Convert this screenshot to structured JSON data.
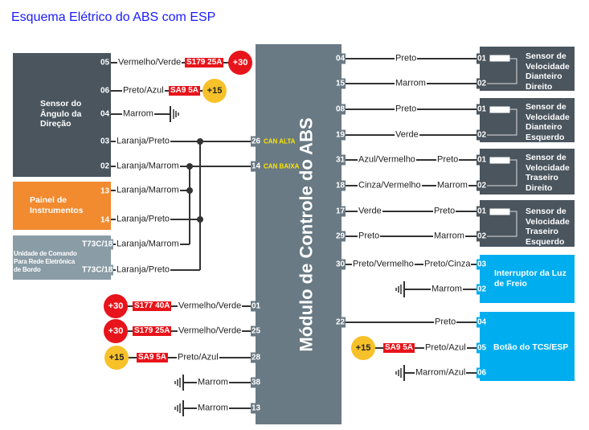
{
  "title": "Esquema Elétrico do ABS com ESP",
  "module": {
    "label": "Módulo de Controle do ABS",
    "can_alta": "CAN ALTA",
    "can_baixa": "CAN BAIXA"
  },
  "sad": {
    "name": "Sensor do Ângulo da Direção",
    "rows": [
      {
        "pin": "05",
        "wire": "Vermelho/Verde",
        "fuse": "S179 25A",
        "supply": "+30"
      },
      {
        "pin": "06",
        "wire": "Preto/Azul",
        "fuse": "SA9 5A",
        "supply": "+15"
      },
      {
        "pin": "04",
        "wire": "Marrom",
        "ground": "ground-icon"
      },
      {
        "pin": "03",
        "wire": "Laranja/Preto",
        "module_pin": "26"
      },
      {
        "pin": "02",
        "wire": "Laranja/Marrom",
        "module_pin": "14"
      }
    ]
  },
  "painel": {
    "name": "Painel de Instrumentos",
    "rows": [
      {
        "pin": "13",
        "wire": "Laranja/Marrom"
      },
      {
        "pin": "14",
        "wire": "Laranja/Preto"
      }
    ]
  },
  "unidade": {
    "name": "Unidade de Comando Para Rede Eletrônica de Bordo",
    "rows": [
      {
        "pin": "T73C/18",
        "wire": "Laranja/Marrom"
      },
      {
        "pin": "T73C/18",
        "wire": "Laranja/Preto"
      }
    ]
  },
  "bottom_left": [
    {
      "supply": "+30",
      "fuse": "S177 40A",
      "wire": "Vermelho/Verde",
      "pin": "01"
    },
    {
      "supply": "+30",
      "fuse": "S179 25A",
      "wire": "Vermelho/Verde",
      "pin": "25"
    },
    {
      "supply": "+15",
      "fuse": "SA9 5A",
      "wire": "Preto/Azul",
      "pin": "28"
    },
    {
      "ground": "ground-icon",
      "wire": "Marrom",
      "pin": "38"
    },
    {
      "ground": "ground-icon",
      "wire": "Marrom",
      "pin": "13"
    }
  ],
  "sensors": [
    {
      "name": "Sensor de Velocidade Dianteiro Direito",
      "rows": [
        {
          "mpin": "04",
          "wire": "Preto",
          "pin": "01"
        },
        {
          "mpin": "15",
          "wire": "Marrom",
          "pin": "02"
        }
      ]
    },
    {
      "name": "Sensor de Velocidade Dianteiro Esquerdo",
      "rows": [
        {
          "mpin": "08",
          "wire": "Preto",
          "pin": "01"
        },
        {
          "mpin": "19",
          "wire": "Verde",
          "pin": "02"
        }
      ]
    },
    {
      "name": "Sensor de Velocidade Traseiro Direito",
      "rows": [
        {
          "mpin": "31",
          "wire": "Azul/Vermelho",
          "wire2": "Preto",
          "pin": "01"
        },
        {
          "mpin": "18",
          "wire": "Cinza/Vermelho",
          "wire2": "Marrom",
          "pin": "02"
        }
      ]
    },
    {
      "name": "Sensor de Velocidade Traseiro Esquerdo",
      "rows": [
        {
          "mpin": "17",
          "wire": "Verde",
          "wire2": "Preto",
          "pin": "01"
        },
        {
          "mpin": "29",
          "wire": "Preto",
          "wire2": "Marrom",
          "pin": "02"
        }
      ]
    }
  ],
  "freio": {
    "name": "Interruptor da Luz de Freio",
    "rows": [
      {
        "mpin": "30",
        "wire": "Preto/Vermelho",
        "wire2": "Preto/Cinza",
        "pin": "03"
      },
      {
        "ground": "ground-icon",
        "wire": "Marrom",
        "pin": "02"
      }
    ]
  },
  "tcs": {
    "name": "Botão do TCS/ESP",
    "rows": [
      {
        "mpin": "22",
        "wire": "Preto",
        "pin": "04"
      },
      {
        "supply": "+15",
        "fuse": "SA9 5A",
        "wire": "Preto/Azul",
        "pin": "05"
      },
      {
        "ground": "ground-icon",
        "wire": "Marrom/Azul",
        "pin": "06"
      }
    ]
  },
  "colors": {
    "module": "#6a7a84",
    "sad": "#4a555e",
    "painel": "#f28a30",
    "unidade": "#8a9ca6",
    "switch": "#00aeef",
    "fuse": "#e8141b",
    "plus30": "#e8141b",
    "plus15": "#f7c12a",
    "title": "#1a1aff"
  }
}
